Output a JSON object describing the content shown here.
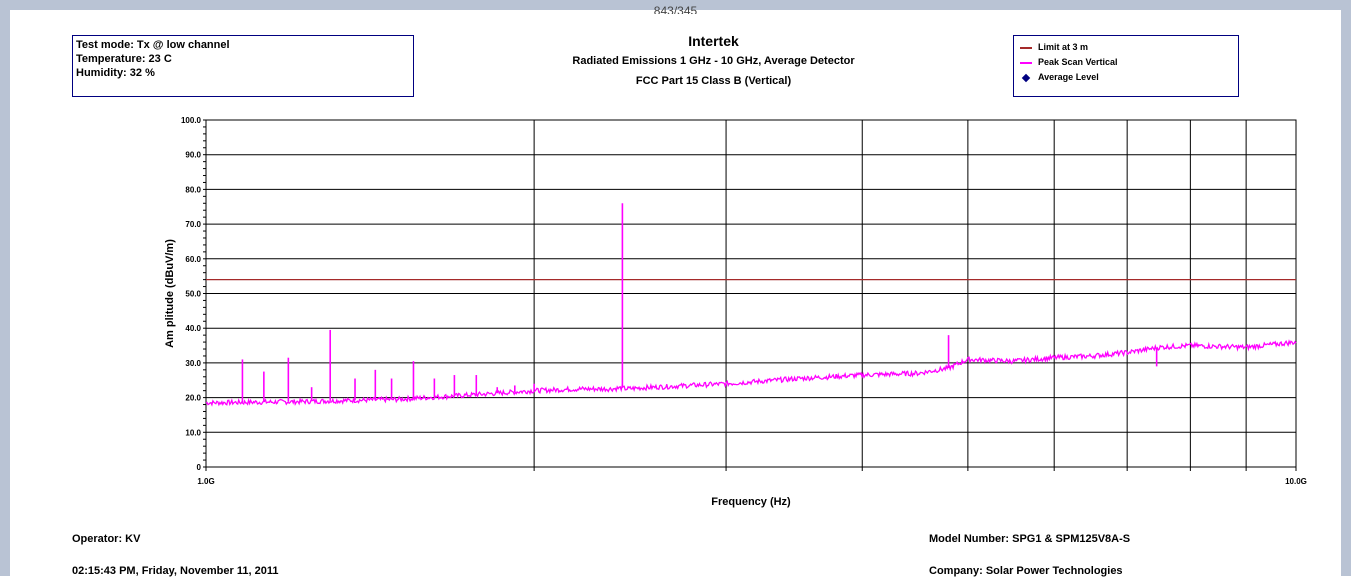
{
  "header": {
    "top_caption": "843/345"
  },
  "info": {
    "test_mode": "Test mode: Tx @ low channel",
    "temperature": "Temperature: 23 C",
    "humidity": "Humidity: 32 %"
  },
  "footer": {
    "operator": "Operator: KV",
    "datetime": "02:15:43 PM, Friday, November 11, 2011",
    "model": "Model Number: SPG1 & SPM125V8A-S",
    "company": "Company: Solar Power Technologies"
  },
  "chart_data": {
    "type": "line",
    "title": "Intertek",
    "subtitle1": "Radiated Emissions 1 GHz - 10 GHz, Average Detector",
    "subtitle2": "FCC Part 15 Class B (Vertical)",
    "xlabel": "Frequency (Hz)",
    "ylabel": "Am plitude (dBuV/m)",
    "x_scale": "log",
    "xlim": [
      1000000000,
      10000000000
    ],
    "ylim": [
      0,
      100
    ],
    "x_tick_labels": [
      {
        "value": 1000000000,
        "label": "1.0G"
      },
      {
        "value": 10000000000,
        "label": "10.0G"
      }
    ],
    "y_ticks": [
      {
        "value": 0,
        "label": "0"
      },
      {
        "value": 10,
        "label": "10.0"
      },
      {
        "value": 20,
        "label": "20.0"
      },
      {
        "value": 30,
        "label": "30.0"
      },
      {
        "value": 40,
        "label": "40.0"
      },
      {
        "value": 50,
        "label": "50.0"
      },
      {
        "value": 60,
        "label": "60.0"
      },
      {
        "value": 70,
        "label": "70.0"
      },
      {
        "value": 80,
        "label": "80.0"
      },
      {
        "value": 90,
        "label": "90.0"
      },
      {
        "value": 100,
        "label": "100.0"
      }
    ],
    "grid": true,
    "legend_position": "top-right",
    "colors": {
      "limit": "#a52a2a",
      "peak": "#ff00ff",
      "average": "#000080"
    },
    "series": [
      {
        "name": "Limit at 3 m",
        "x": [
          1000000000,
          10000000000
        ],
        "y": [
          54,
          54
        ]
      },
      {
        "name": "Peak Scan Vertical",
        "x": [
          1000000000,
          1200000000,
          1500000000,
          1800000000,
          2000000000,
          2200000000,
          2350000000,
          2410000000,
          2430000000,
          2500000000,
          3000000000,
          3500000000,
          4000000000,
          4500000000,
          4800000000,
          5000000000,
          5500000000,
          6000000000,
          6500000000,
          7000000000,
          7500000000,
          8000000000,
          9000000000,
          10000000000
        ],
        "y": [
          18.5,
          18.8,
          19.5,
          21,
          22,
          22.5,
          22.5,
          22.8,
          22.5,
          22.8,
          24,
          25.5,
          26.5,
          27,
          28.5,
          31,
          30.5,
          31.5,
          32,
          33,
          34.5,
          35,
          34.5,
          36
        ]
      },
      {
        "name": "Average Level",
        "x": [],
        "y": []
      }
    ],
    "spikes": [
      {
        "x": 1080000000,
        "y": 31
      },
      {
        "x": 1130000000,
        "y": 27.5
      },
      {
        "x": 1190000000,
        "y": 31.5
      },
      {
        "x": 1250000000,
        "y": 23
      },
      {
        "x": 1300000000,
        "y": 39.5
      },
      {
        "x": 1370000000,
        "y": 25.5
      },
      {
        "x": 1430000000,
        "y": 28
      },
      {
        "x": 1480000000,
        "y": 25.5
      },
      {
        "x": 1550000000,
        "y": 30.5
      },
      {
        "x": 1620000000,
        "y": 25.5
      },
      {
        "x": 1690000000,
        "y": 26.5
      },
      {
        "x": 1770000000,
        "y": 26.5
      },
      {
        "x": 1850000000,
        "y": 23
      },
      {
        "x": 1920000000,
        "y": 23.5
      },
      {
        "x": 2000000000,
        "y": 24
      },
      {
        "x": 2410000000,
        "y": 76
      },
      {
        "x": 4800000000,
        "y": 38
      },
      {
        "x": 7450000000,
        "y": 29
      }
    ]
  }
}
